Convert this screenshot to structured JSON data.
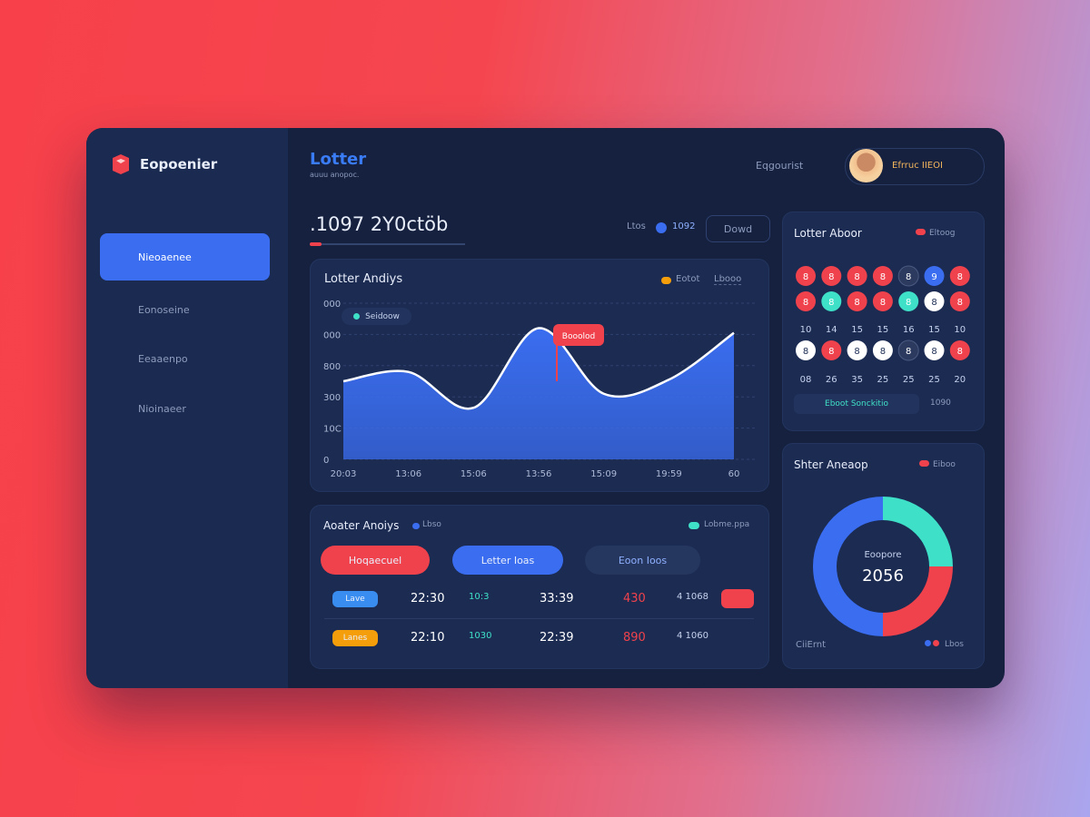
{
  "brand": "Eopoenier",
  "header": {
    "title": "Lotter",
    "subtitle": "auuu anopoc.",
    "link": "Eqgourist",
    "user": "Efrruc IIEOI"
  },
  "sidebar": {
    "items": [
      "Nieoaenee",
      "Eonoseine",
      "Eeaaenpo",
      "Nioinaeer"
    ]
  },
  "stat": {
    "value": ".1097 2Y0ctöb",
    "control_label": "Ltos",
    "control_value": "1092",
    "dropdown": "Dowd"
  },
  "chart_data": [
    {
      "type": "area",
      "title": "Lotter Andiys",
      "legend": "Eotot",
      "legend_box": "Lbooo",
      "badge": "Seidoow",
      "tooltip": "Booolod",
      "color": "#3a6df0",
      "categories": [
        "20:03",
        "13:06",
        "15:06",
        "13:56",
        "15:09",
        "19:59",
        "60"
      ],
      "values": [
        250,
        280,
        165,
        420,
        210,
        255,
        405
      ],
      "ylim": [
        0,
        500
      ],
      "yticks": [
        0,
        {
          "value": 100,
          "label": "10C"
        },
        {
          "value": 200,
          "label": "300"
        },
        {
          "value": 300,
          "label": "800"
        },
        {
          "value": 400,
          "label": "000"
        },
        {
          "value": 500,
          "label": "000"
        }
      ],
      "grid": true
    },
    {
      "type": "donut",
      "title": "Shter Aneaop",
      "legend": "Eiboo",
      "center_label": "Eoopore",
      "center_value": "2056",
      "footer": "CiiErnt",
      "footer_legend": "Lbos",
      "values": [
        25,
        25,
        50
      ],
      "colors": [
        "#3fe0c8",
        "#f0424c",
        "#3a6df0"
      ]
    }
  ],
  "balls": {
    "title": "Lotter Aboor",
    "legend": "Eltoog",
    "rows": [
      [
        "8",
        "8",
        "8",
        "8",
        "8",
        "9",
        "8"
      ],
      [
        "8",
        "8",
        "8",
        "8",
        "8",
        "8",
        "8"
      ],
      [
        "8",
        "8",
        "8",
        "8",
        "8",
        "8",
        "8"
      ]
    ],
    "colors": [
      [
        "#f0424c",
        "#f0424c",
        "#f0424c",
        "#f0424c",
        "#2b3a5e",
        "#3a6df0",
        "#f0424c"
      ],
      [
        "#f0424c",
        "#3fe0c8",
        "#f0424c",
        "#f0424c",
        "#3fe0c8",
        "#ffffff",
        "#f0424c"
      ],
      [
        "#ffffff",
        "#f0424c",
        "#ffffff",
        "#ffffff",
        "#2b3a5e",
        "#ffffff",
        "#f0424c"
      ]
    ],
    "numbers": [
      [
        "10",
        "14",
        "15",
        "15",
        "16",
        "15",
        "10"
      ],
      [
        "08",
        "26",
        "35",
        "25",
        "25",
        "25",
        "20"
      ]
    ],
    "button": "Eboot Sonckitio",
    "button_value": "1090"
  },
  "table": {
    "title": "Aoater Anoiys",
    "tag": "Lbso",
    "legend": "Lobme.ppa",
    "tabs": [
      "Hoqaecuel",
      "Letter Ioas",
      "Eoon Ioos"
    ],
    "rows": [
      [
        "Lave",
        "22:30",
        "10:3",
        "33:39",
        "430",
        "4 1068"
      ],
      [
        "Lanes",
        "22:10",
        "1030",
        "22:39",
        "890",
        "4 1060"
      ]
    ]
  }
}
